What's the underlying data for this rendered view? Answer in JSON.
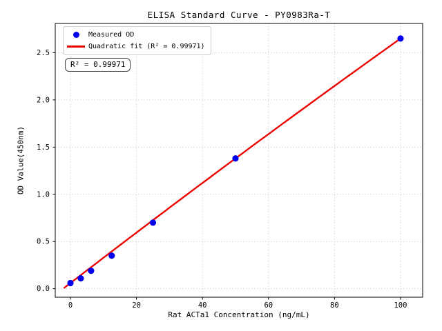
{
  "page": {
    "background": "#ffffff"
  },
  "chart_data": {
    "type": "scatter",
    "title": "ELISA Standard Curve - PY0983Ra-T",
    "xlabel": "Rat ACTa1 Concentration (ng/mL)",
    "ylabel": "OD Value(450nm)",
    "xlim": [
      -4.6,
      106.7
    ],
    "ylim": [
      -0.09,
      2.81
    ],
    "x_ticks": [
      0,
      20,
      40,
      60,
      80,
      100
    ],
    "x_tick_labels": [
      "0",
      "20",
      "40",
      "60",
      "80",
      "100"
    ],
    "y_ticks": [
      0.0,
      0.5,
      1.0,
      1.5,
      2.0,
      2.5
    ],
    "y_tick_labels": [
      "0.0",
      "0.5",
      "1.0",
      "1.5",
      "2.0",
      "2.5"
    ],
    "grid": true,
    "grid_color": "#cccccc",
    "axis_color": "#000000",
    "series": [
      {
        "name": "Measured OD",
        "type": "scatter",
        "color": "#0000ee",
        "x": [
          0,
          3.125,
          6.25,
          12.5,
          25,
          50,
          100
        ],
        "y": [
          0.06,
          0.11,
          0.19,
          0.35,
          0.7,
          1.38,
          2.65
        ]
      },
      {
        "name": "Quadratic fit",
        "type": "line",
        "color": "#ee0000",
        "r_squared": 0.99971,
        "x_range": [
          -2,
          100
        ]
      }
    ],
    "legend": {
      "position": "upper-left",
      "entries": [
        {
          "label": "Measured OD",
          "marker": "dot",
          "color": "#0000ee"
        },
        {
          "label": "Quadratic fit (R² = 0.99971)",
          "marker": "line",
          "color": "#ee0000"
        }
      ]
    },
    "annotation": {
      "text": "R² = 0.99971"
    }
  }
}
